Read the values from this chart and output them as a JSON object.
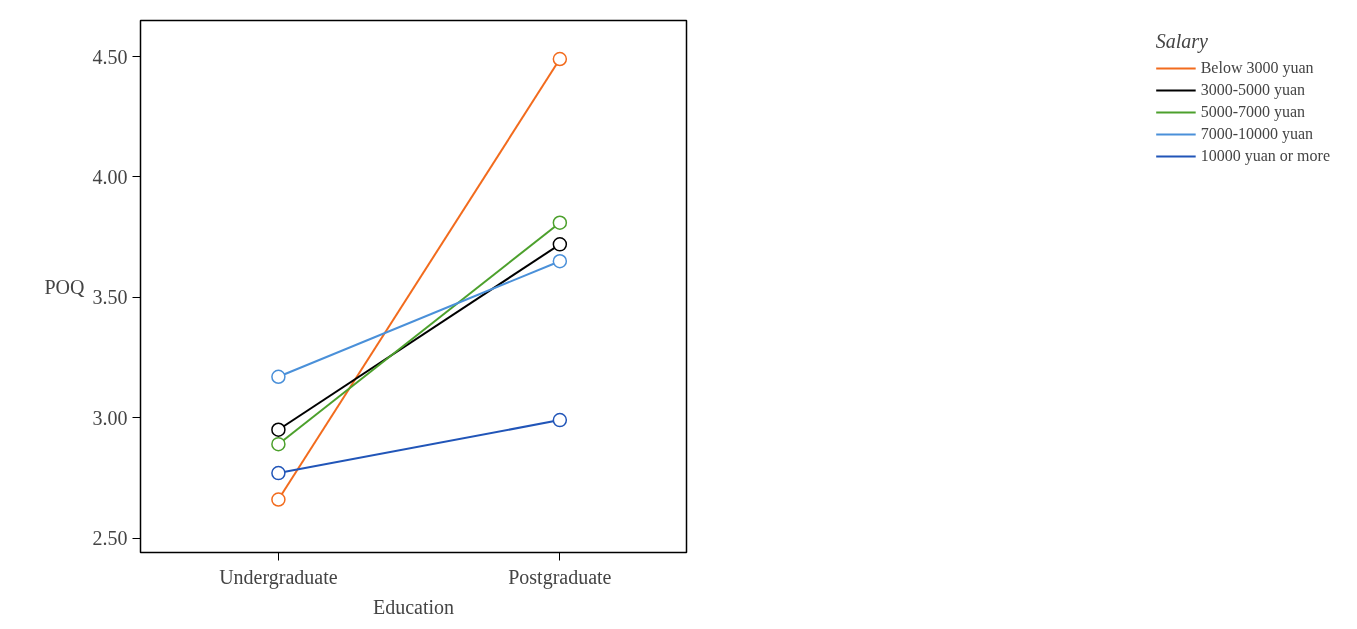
{
  "chart_data": {
    "type": "line",
    "xlabel": "Education",
    "ylabel": "POQ",
    "legend_title": "Salary",
    "categories": [
      "Undergraduate",
      "Postgraduate"
    ],
    "series": [
      {
        "name": "Below 3000 yuan",
        "color": "#f26b1d",
        "values": [
          2.66,
          4.49
        ]
      },
      {
        "name": "3000-5000 yuan",
        "color": "#000000",
        "values": [
          2.95,
          3.72
        ]
      },
      {
        "name": "5000-7000 yuan",
        "color": "#4ca02c",
        "values": [
          2.89,
          3.81
        ]
      },
      {
        "name": "7000-10000 yuan",
        "color": "#4a90d9",
        "values": [
          3.17,
          3.65
        ]
      },
      {
        "name": "10000 yuan or more",
        "color": "#2155b8",
        "values": [
          2.77,
          2.99
        ]
      }
    ],
    "ylim": [
      2.44,
      4.65
    ],
    "yticks": [
      {
        "value": 2.5,
        "label": "2.50"
      },
      {
        "value": 3.0,
        "label": "3.00"
      },
      {
        "value": 3.5,
        "label": "3.50"
      },
      {
        "value": 4.0,
        "label": "4.00"
      },
      {
        "value": 4.5,
        "label": "4.50"
      }
    ],
    "marker": "circle",
    "line_style": "solid",
    "grid": false,
    "legend": "right"
  }
}
